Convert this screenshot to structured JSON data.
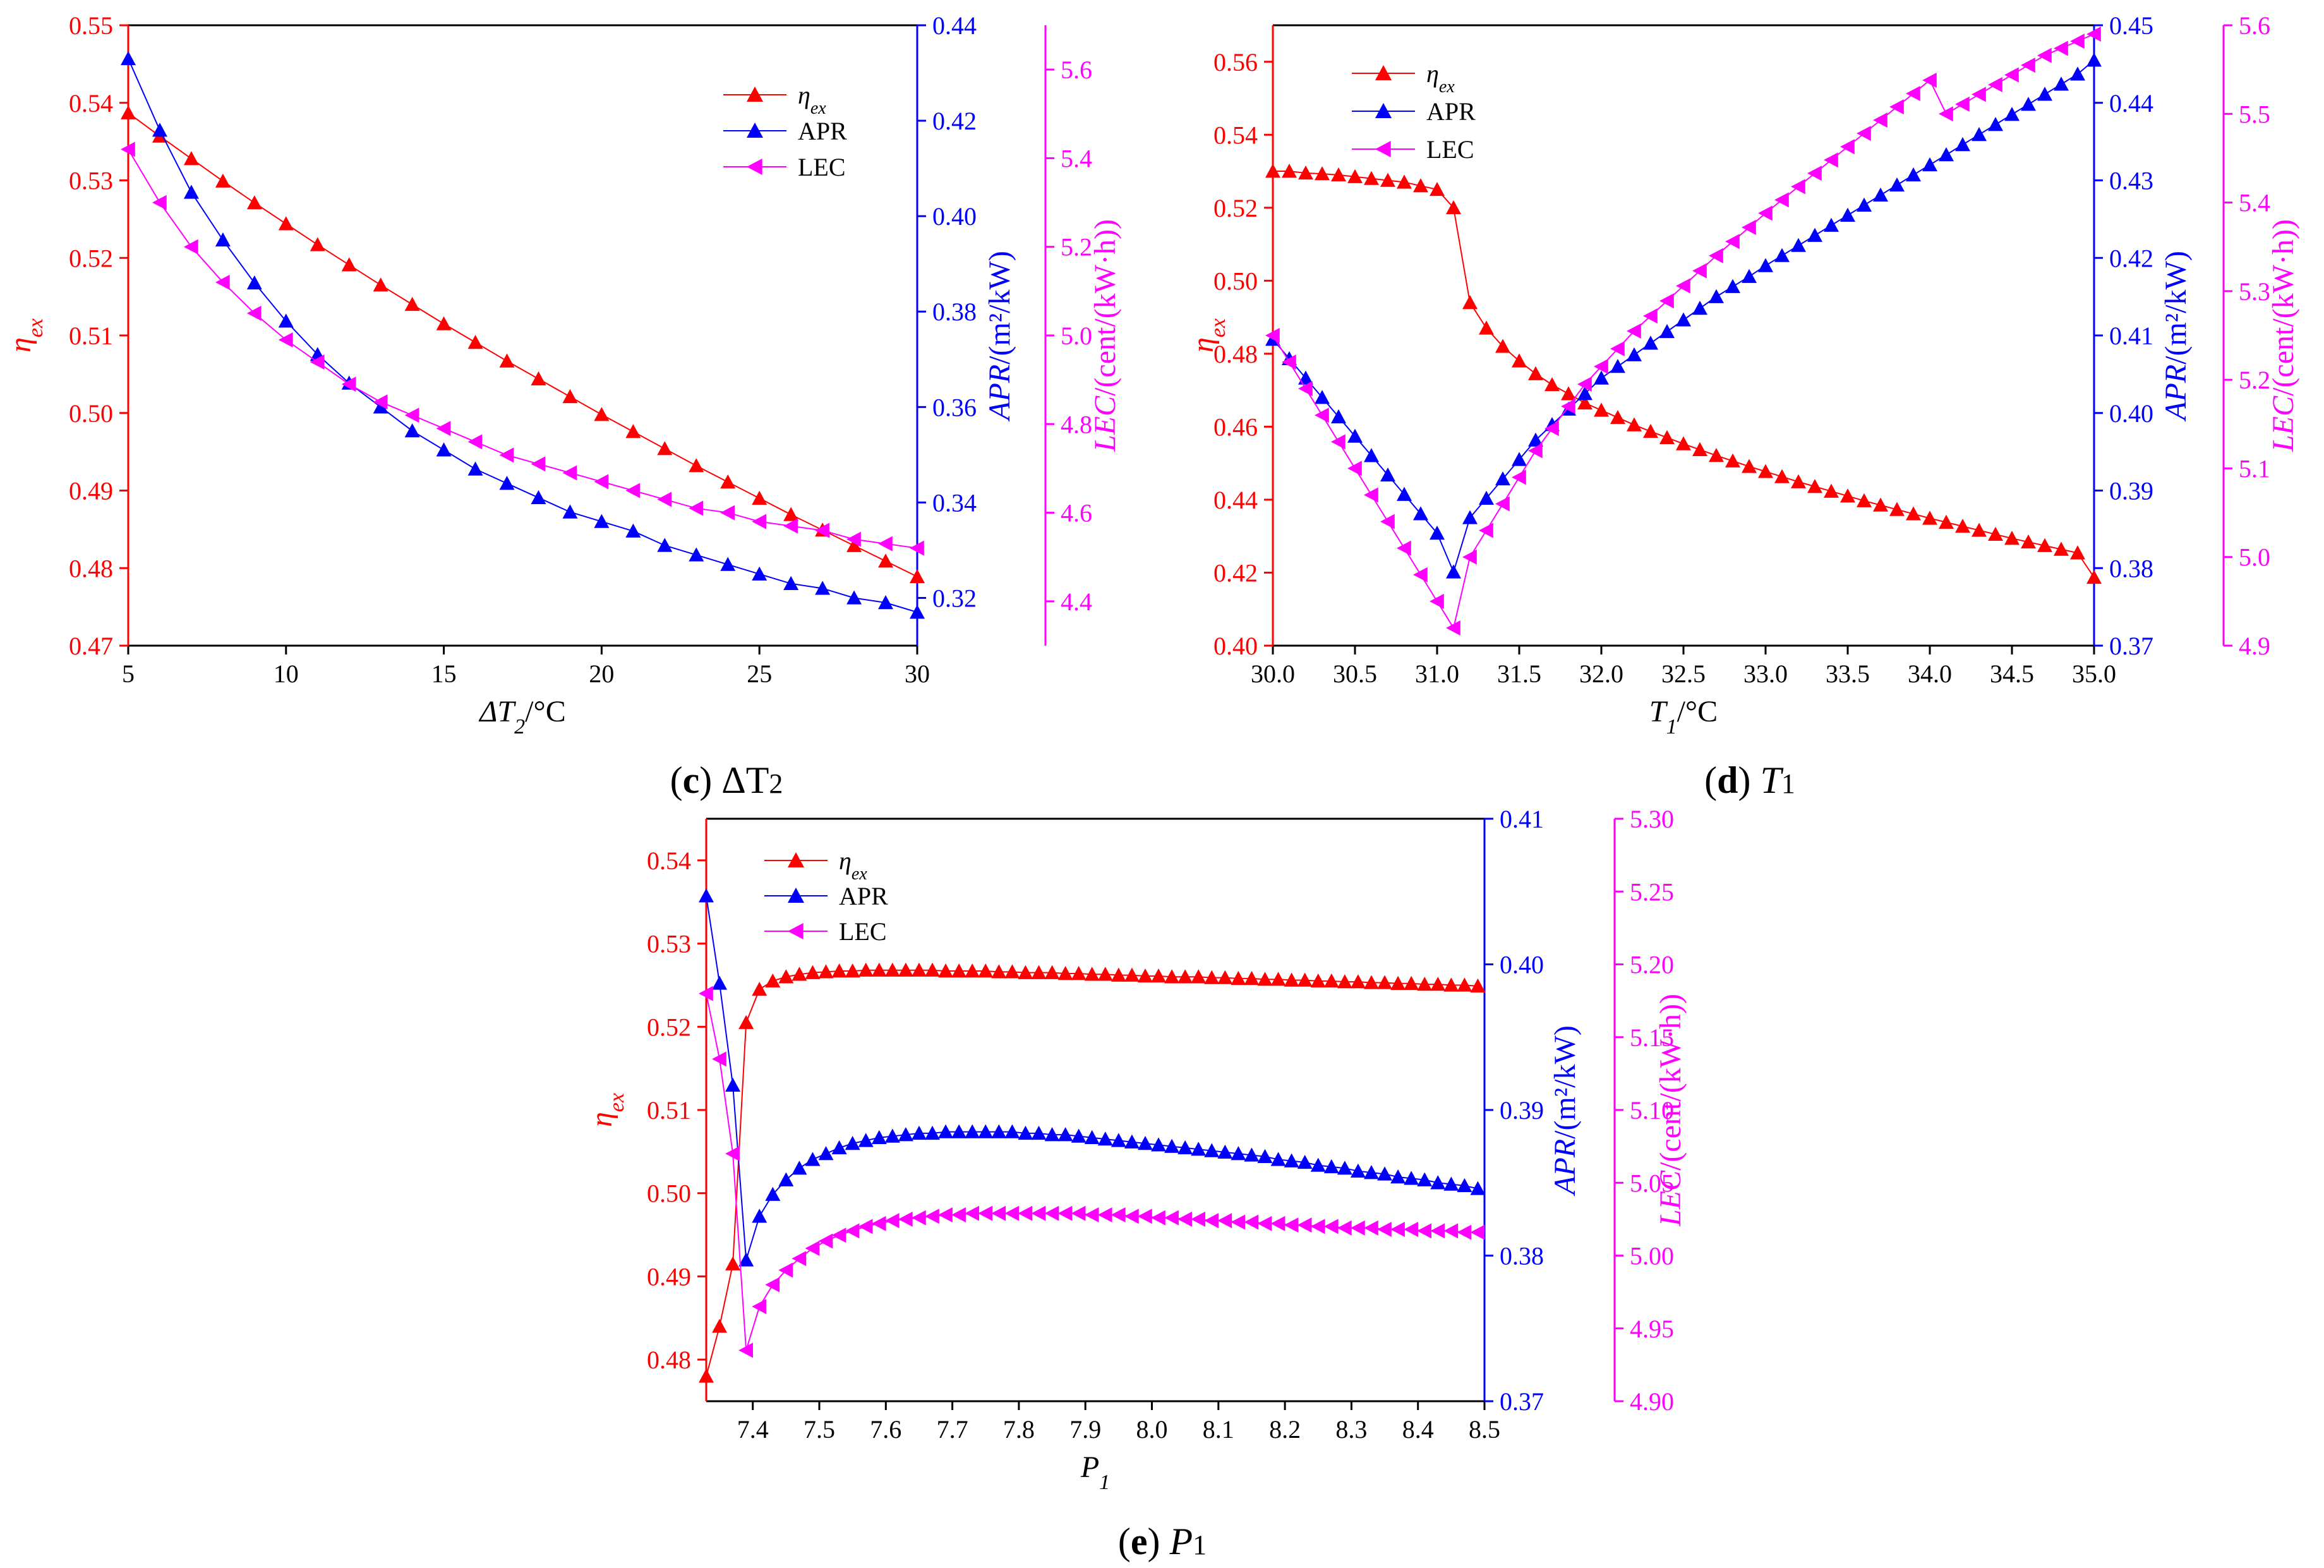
{
  "colors": {
    "eta": "#ff0000",
    "apr": "#0000ff",
    "lec": "#ff00ff",
    "axis": "#000000"
  },
  "series_meta": [
    {
      "key": "eta",
      "legend_main": "η",
      "legend_sub": "ex",
      "marker": "triangle-up"
    },
    {
      "key": "apr",
      "legend_main": "APR",
      "legend_sub": "",
      "marker": "triangle-up"
    },
    {
      "key": "lec",
      "legend_main": "LEC",
      "legend_sub": "",
      "marker": "triangle-left"
    }
  ],
  "chart_data": [
    {
      "type": "line",
      "panel": "c",
      "caption": {
        "letter": "(c)",
        "symbol": "ΔT",
        "sub": "2"
      },
      "xlabel": {
        "italic": "ΔT",
        "sub": "2",
        "unit": "/°C"
      },
      "xlim": [
        5,
        30
      ],
      "xticks": [
        5,
        10,
        15,
        20,
        25,
        30
      ],
      "xtick_labels": [
        "5",
        "10",
        "15",
        "20",
        "25",
        "30"
      ],
      "axes": {
        "eta": {
          "label_main": "η",
          "label_sub": "ex",
          "lim": [
            0.47,
            0.55
          ],
          "ticks": [
            0.47,
            0.48,
            0.49,
            0.5,
            0.51,
            0.52,
            0.53,
            0.54,
            0.55
          ],
          "tick_labels": [
            "0.47",
            "0.48",
            "0.49",
            "0.50",
            "0.51",
            "0.52",
            "0.53",
            "0.54",
            "0.55"
          ]
        },
        "apr": {
          "label_italic": "APR",
          "label_rest": "/(m²/kW)",
          "lim": [
            0.31,
            0.44
          ],
          "ticks": [
            0.32,
            0.34,
            0.36,
            0.38,
            0.4,
            0.42,
            0.44
          ],
          "tick_labels": [
            "0.32",
            "0.34",
            "0.36",
            "0.38",
            "0.40",
            "0.42",
            "0.44"
          ]
        },
        "lec": {
          "label_italic": "LEC",
          "label_rest": "/(cent/(kW·h))",
          "lim": [
            4.3,
            5.7
          ],
          "ticks": [
            4.4,
            4.6,
            4.8,
            5.0,
            5.2,
            5.4,
            5.6
          ],
          "tick_labels": [
            "4.4",
            "4.6",
            "4.8",
            "5.0",
            "5.2",
            "5.4",
            "5.6"
          ]
        }
      },
      "x": [
        5,
        6,
        7,
        8,
        9,
        10,
        11,
        12,
        13,
        14,
        15,
        16,
        17,
        18,
        19,
        20,
        21,
        22,
        23,
        24,
        25,
        26,
        27,
        28,
        29,
        30
      ],
      "series": [
        {
          "key": "eta",
          "name": "ηex",
          "values": [
            0.5387,
            0.5357,
            0.5328,
            0.5299,
            0.5271,
            0.5244,
            0.5217,
            0.5191,
            0.5165,
            0.514,
            0.5115,
            0.5091,
            0.5067,
            0.5044,
            0.5021,
            0.4998,
            0.4976,
            0.4954,
            0.4932,
            0.4911,
            0.489,
            0.4869,
            0.4849,
            0.4829,
            0.4809,
            0.4789
          ]
        },
        {
          "key": "apr",
          "name": "APR",
          "values": [
            0.433,
            0.418,
            0.405,
            0.395,
            0.386,
            0.378,
            0.371,
            0.365,
            0.36,
            0.355,
            0.351,
            0.347,
            0.344,
            0.341,
            0.338,
            0.336,
            0.334,
            0.331,
            0.329,
            0.327,
            0.325,
            0.323,
            0.322,
            0.32,
            0.319,
            0.317
          ]
        },
        {
          "key": "lec",
          "name": "LEC",
          "values": [
            5.42,
            5.3,
            5.2,
            5.12,
            5.05,
            4.99,
            4.94,
            4.89,
            4.85,
            4.82,
            4.79,
            4.76,
            4.73,
            4.71,
            4.69,
            4.67,
            4.65,
            4.63,
            4.61,
            4.6,
            4.58,
            4.57,
            4.56,
            4.54,
            4.53,
            4.52
          ]
        }
      ]
    },
    {
      "type": "line",
      "panel": "d",
      "caption": {
        "letter": "(d)",
        "symbol": "T",
        "sub": "1"
      },
      "xlabel": {
        "italic": "T",
        "sub": "1",
        "unit": "/°C"
      },
      "xlim": [
        30.0,
        35.0
      ],
      "xticks": [
        30.0,
        30.5,
        31.0,
        31.5,
        32.0,
        32.5,
        33.0,
        33.5,
        34.0,
        34.5,
        35.0
      ],
      "xtick_labels": [
        "30.0",
        "30.5",
        "31.0",
        "31.5",
        "32.0",
        "32.5",
        "33.0",
        "33.5",
        "34.0",
        "34.5",
        "35.0"
      ],
      "axes": {
        "eta": {
          "label_main": "η",
          "label_sub": "ex",
          "lim": [
            0.4,
            0.57
          ],
          "ticks": [
            0.4,
            0.42,
            0.44,
            0.46,
            0.48,
            0.5,
            0.52,
            0.54,
            0.56
          ],
          "tick_labels": [
            "0.40",
            "0.42",
            "0.44",
            "0.46",
            "0.48",
            "0.50",
            "0.52",
            "0.54",
            "0.56"
          ]
        },
        "apr": {
          "label_italic": "APR",
          "label_rest": "/(m²/kW)",
          "lim": [
            0.37,
            0.45
          ],
          "ticks": [
            0.37,
            0.38,
            0.39,
            0.4,
            0.41,
            0.42,
            0.43,
            0.44,
            0.45
          ],
          "tick_labels": [
            "0.37",
            "0.38",
            "0.39",
            "0.40",
            "0.41",
            "0.42",
            "0.43",
            "0.44",
            "0.45"
          ]
        },
        "lec": {
          "label_italic": "LEC",
          "label_rest": "/(cent/(kW·h))",
          "lim": [
            4.9,
            5.6
          ],
          "ticks": [
            4.9,
            5.0,
            5.1,
            5.2,
            5.3,
            5.4,
            5.5,
            5.6
          ],
          "tick_labels": [
            "4.9",
            "5.0",
            "5.1",
            "5.2",
            "5.3",
            "5.4",
            "5.5",
            "5.6"
          ]
        }
      },
      "x": [
        30.0,
        30.1,
        30.2,
        30.3,
        30.4,
        30.5,
        30.6,
        30.7,
        30.8,
        30.9,
        31.0,
        31.1,
        31.2,
        31.3,
        31.4,
        31.5,
        31.6,
        31.7,
        31.8,
        31.9,
        32.0,
        32.1,
        32.2,
        32.3,
        32.4,
        32.5,
        32.6,
        32.7,
        32.8,
        32.9,
        33.0,
        33.1,
        33.2,
        33.3,
        33.4,
        33.5,
        33.6,
        33.7,
        33.8,
        33.9,
        34.0,
        34.1,
        34.2,
        34.3,
        34.4,
        34.5,
        34.6,
        34.7,
        34.8,
        34.9,
        35.0
      ],
      "series": [
        {
          "key": "eta",
          "name": "ηex",
          "values": [
            0.53,
            0.53,
            0.5295,
            0.5293,
            0.529,
            0.5285,
            0.528,
            0.5275,
            0.527,
            0.526,
            0.525,
            0.52,
            0.494,
            0.487,
            0.482,
            0.478,
            0.4745,
            0.4715,
            0.469,
            0.4665,
            0.4645,
            0.4625,
            0.4605,
            0.4587,
            0.457,
            0.4553,
            0.4537,
            0.4521,
            0.4506,
            0.4491,
            0.4477,
            0.4463,
            0.4449,
            0.4436,
            0.4423,
            0.441,
            0.4397,
            0.4385,
            0.4373,
            0.4361,
            0.4349,
            0.4338,
            0.4327,
            0.4316,
            0.4305,
            0.4294,
            0.4284,
            0.4274,
            0.4264,
            0.4254,
            0.4187
          ]
        },
        {
          "key": "apr",
          "name": "APR",
          "values": [
            0.4095,
            0.407,
            0.4045,
            0.402,
            0.3995,
            0.397,
            0.3945,
            0.392,
            0.3895,
            0.387,
            0.3845,
            0.3795,
            0.3865,
            0.389,
            0.3915,
            0.394,
            0.3965,
            0.3985,
            0.4005,
            0.4025,
            0.4045,
            0.406,
            0.4075,
            0.409,
            0.4105,
            0.412,
            0.4135,
            0.415,
            0.4163,
            0.4176,
            0.419,
            0.4203,
            0.4216,
            0.4229,
            0.4242,
            0.4255,
            0.4268,
            0.4281,
            0.4294,
            0.4307,
            0.432,
            0.4333,
            0.4346,
            0.4359,
            0.4372,
            0.4385,
            0.4398,
            0.4411,
            0.4424,
            0.4437,
            0.4455
          ]
        },
        {
          "key": "lec",
          "name": "LEC",
          "values": [
            5.25,
            5.22,
            5.19,
            5.16,
            5.13,
            5.1,
            5.07,
            5.04,
            5.01,
            4.98,
            4.95,
            4.92,
            5.0,
            5.03,
            5.06,
            5.09,
            5.12,
            5.145,
            5.17,
            5.195,
            5.215,
            5.235,
            5.255,
            5.272,
            5.289,
            5.306,
            5.323,
            5.34,
            5.356,
            5.372,
            5.388,
            5.403,
            5.418,
            5.433,
            5.448,
            5.463,
            5.478,
            5.493,
            5.508,
            5.523,
            5.538,
            5.5,
            5.511,
            5.522,
            5.533,
            5.544,
            5.555,
            5.566,
            5.574,
            5.582,
            5.59
          ]
        }
      ]
    },
    {
      "type": "line",
      "panel": "e",
      "caption": {
        "letter": "(e)",
        "symbol": "P",
        "sub": "1"
      },
      "xlabel": {
        "italic": "P",
        "sub": "1",
        "unit": ""
      },
      "xlim": [
        7.33,
        8.5
      ],
      "xticks": [
        7.4,
        7.5,
        7.6,
        7.7,
        7.8,
        7.9,
        8.0,
        8.1,
        8.2,
        8.3,
        8.4,
        8.5
      ],
      "xtick_labels": [
        "7.4",
        "7.5",
        "7.6",
        "7.7",
        "7.8",
        "7.9",
        "8.0",
        "8.1",
        "8.2",
        "8.3",
        "8.4",
        "8.5"
      ],
      "axes": {
        "eta": {
          "label_main": "η",
          "label_sub": "ex",
          "lim": [
            0.475,
            0.545
          ],
          "ticks": [
            0.48,
            0.49,
            0.5,
            0.51,
            0.52,
            0.53,
            0.54
          ],
          "tick_labels": [
            "0.48",
            "0.49",
            "0.50",
            "0.51",
            "0.52",
            "0.53",
            "0.54"
          ]
        },
        "apr": {
          "label_italic": "APR",
          "label_rest": "/(m²/kW)",
          "lim": [
            0.37,
            0.41
          ],
          "ticks": [
            0.37,
            0.38,
            0.39,
            0.4,
            0.41
          ],
          "tick_labels": [
            "0.37",
            "0.38",
            "0.39",
            "0.40",
            "0.41"
          ]
        },
        "lec": {
          "label_italic": "LEC",
          "label_rest": "/(cent/(kW·h))",
          "lim": [
            4.9,
            5.3
          ],
          "ticks": [
            4.9,
            4.95,
            5.0,
            5.05,
            5.1,
            5.15,
            5.2,
            5.25,
            5.3
          ],
          "tick_labels": [
            "4.90",
            "4.95",
            "5.00",
            "5.05",
            "5.10",
            "5.15",
            "5.20",
            "5.25",
            "5.30"
          ]
        }
      },
      "x": [
        7.33,
        7.35,
        7.37,
        7.39,
        7.41,
        7.43,
        7.45,
        7.47,
        7.49,
        7.51,
        7.53,
        7.55,
        7.57,
        7.59,
        7.61,
        7.63,
        7.65,
        7.67,
        7.69,
        7.71,
        7.73,
        7.75,
        7.77,
        7.79,
        7.81,
        7.83,
        7.85,
        7.87,
        7.89,
        7.91,
        7.93,
        7.95,
        7.97,
        7.99,
        8.01,
        8.03,
        8.05,
        8.07,
        8.09,
        8.11,
        8.13,
        8.15,
        8.17,
        8.19,
        8.21,
        8.23,
        8.25,
        8.27,
        8.29,
        8.31,
        8.33,
        8.35,
        8.37,
        8.39,
        8.41,
        8.43,
        8.45,
        8.47,
        8.49
      ],
      "series": [
        {
          "key": "eta",
          "name": "ηex",
          "values": [
            0.478,
            0.484,
            0.4915,
            0.5205,
            0.5245,
            0.5255,
            0.526,
            0.5263,
            0.5265,
            0.5266,
            0.5267,
            0.5267,
            0.5268,
            0.5268,
            0.5268,
            0.5268,
            0.5268,
            0.5268,
            0.5267,
            0.5267,
            0.5267,
            0.5267,
            0.5266,
            0.5266,
            0.5265,
            0.5265,
            0.5265,
            0.5264,
            0.5264,
            0.5263,
            0.5263,
            0.5262,
            0.5262,
            0.5261,
            0.5261,
            0.526,
            0.526,
            0.526,
            0.5259,
            0.5259,
            0.5258,
            0.5258,
            0.5257,
            0.5257,
            0.5256,
            0.5256,
            0.5255,
            0.5255,
            0.5254,
            0.5254,
            0.5253,
            0.5253,
            0.5252,
            0.5252,
            0.5251,
            0.5251,
            0.525,
            0.525,
            0.5249
          ]
        },
        {
          "key": "apr",
          "name": "APR",
          "values": [
            0.4047,
            0.3987,
            0.3917,
            0.3797,
            0.3827,
            0.3842,
            0.3852,
            0.386,
            0.3866,
            0.387,
            0.3874,
            0.3877,
            0.3879,
            0.3881,
            0.3882,
            0.3883,
            0.3884,
            0.3884,
            0.3885,
            0.3885,
            0.3885,
            0.3885,
            0.3885,
            0.3885,
            0.3884,
            0.3884,
            0.3883,
            0.3883,
            0.3882,
            0.3881,
            0.388,
            0.3879,
            0.3878,
            0.3877,
            0.3876,
            0.3875,
            0.3874,
            0.3873,
            0.3872,
            0.3871,
            0.387,
            0.3869,
            0.3868,
            0.3866,
            0.3865,
            0.3864,
            0.3862,
            0.3861,
            0.386,
            0.3858,
            0.3857,
            0.3856,
            0.3854,
            0.3853,
            0.3852,
            0.385,
            0.3849,
            0.3848,
            0.3846
          ]
        },
        {
          "key": "lec",
          "name": "LEC",
          "values": [
            5.18,
            5.135,
            5.07,
            4.935,
            4.965,
            4.98,
            4.99,
            4.998,
            5.005,
            5.01,
            5.014,
            5.017,
            5.02,
            5.022,
            5.024,
            5.025,
            5.026,
            5.027,
            5.028,
            5.028,
            5.029,
            5.029,
            5.029,
            5.029,
            5.029,
            5.029,
            5.029,
            5.029,
            5.029,
            5.028,
            5.028,
            5.028,
            5.027,
            5.027,
            5.026,
            5.026,
            5.025,
            5.025,
            5.024,
            5.024,
            5.023,
            5.023,
            5.022,
            5.022,
            5.021,
            5.021,
            5.02,
            5.02,
            5.019,
            5.019,
            5.019,
            5.018,
            5.018,
            5.018,
            5.017,
            5.017,
            5.017,
            5.016,
            5.016
          ]
        }
      ]
    }
  ]
}
